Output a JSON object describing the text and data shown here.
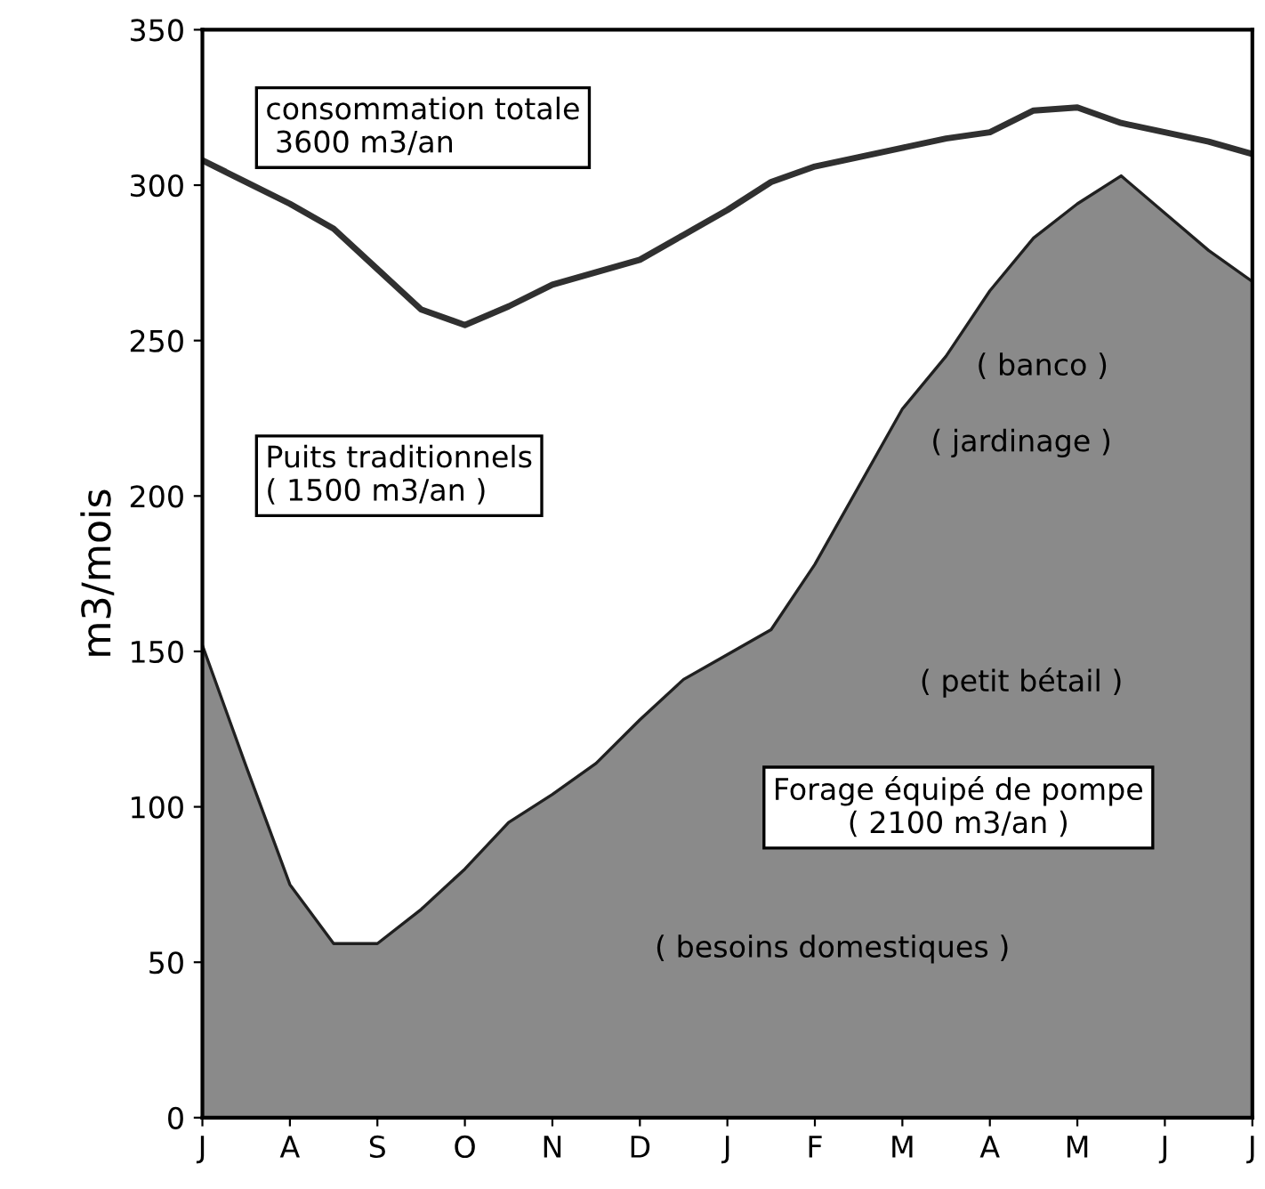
{
  "chart_data": {
    "type": "area",
    "ylabel": "m3/mois",
    "categories": [
      "J",
      null,
      "A",
      null,
      "S",
      null,
      "O",
      null,
      "N",
      null,
      "D",
      null,
      "J",
      null,
      "F",
      null,
      "M",
      null,
      "A",
      null,
      "M",
      null,
      "J",
      null,
      "J"
    ],
    "ylim": [
      0,
      350
    ],
    "yticks": [
      0,
      50,
      100,
      150,
      200,
      250,
      300,
      350
    ],
    "grid": false,
    "series": [
      {
        "type": "line",
        "color": "#303030",
        "values": [
          308,
          301,
          294,
          286,
          273,
          260,
          255,
          261,
          268,
          272,
          276,
          284,
          292,
          301,
          306,
          309,
          312,
          315,
          317,
          324,
          325,
          320,
          317,
          314,
          310
        ]
      },
      {
        "color": "#8a8a8a",
        "values": [
          152,
          113,
          75,
          56,
          56,
          67,
          80,
          95,
          104,
          114,
          128,
          141,
          149,
          157,
          178,
          203,
          228,
          245,
          266,
          283,
          294,
          303,
          291,
          279,
          269
        ]
      }
    ],
    "annotations": [
      "consommation totale\n 3600 m3/an",
      "Puits traditionnels\n( 1500 m3/an )",
      "( banco )",
      "( jardinage )",
      "( petit bétail )",
      "Forage équipé de pompe\n( 2100 m3/an )",
      "( besoins domestiques )"
    ]
  }
}
